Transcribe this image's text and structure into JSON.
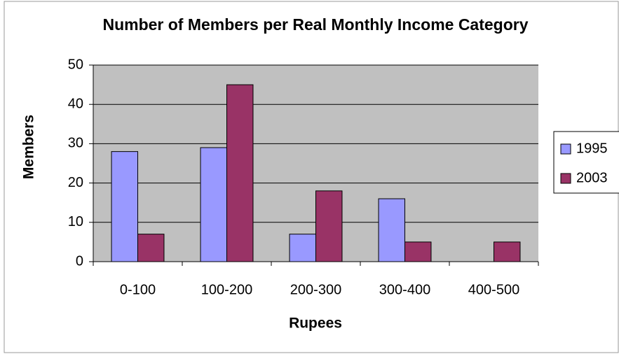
{
  "chart_data": {
    "type": "bar",
    "title": "Number of Members per Real Monthly Income Category",
    "x_label": "Rupees",
    "y_label": "Members",
    "categories": [
      "0-100",
      "100-200",
      "200-300",
      "300-400",
      "400-500"
    ],
    "series": [
      {
        "name": "1995",
        "color": "#9999ff",
        "values": [
          28,
          29,
          7,
          16,
          0
        ]
      },
      {
        "name": "2003",
        "color": "#993366",
        "values": [
          7,
          45,
          18,
          5,
          5
        ]
      }
    ],
    "ylim": [
      0,
      50
    ],
    "yticks": [
      0,
      10,
      20,
      30,
      40,
      50
    ],
    "grid": true,
    "legend": "right"
  }
}
